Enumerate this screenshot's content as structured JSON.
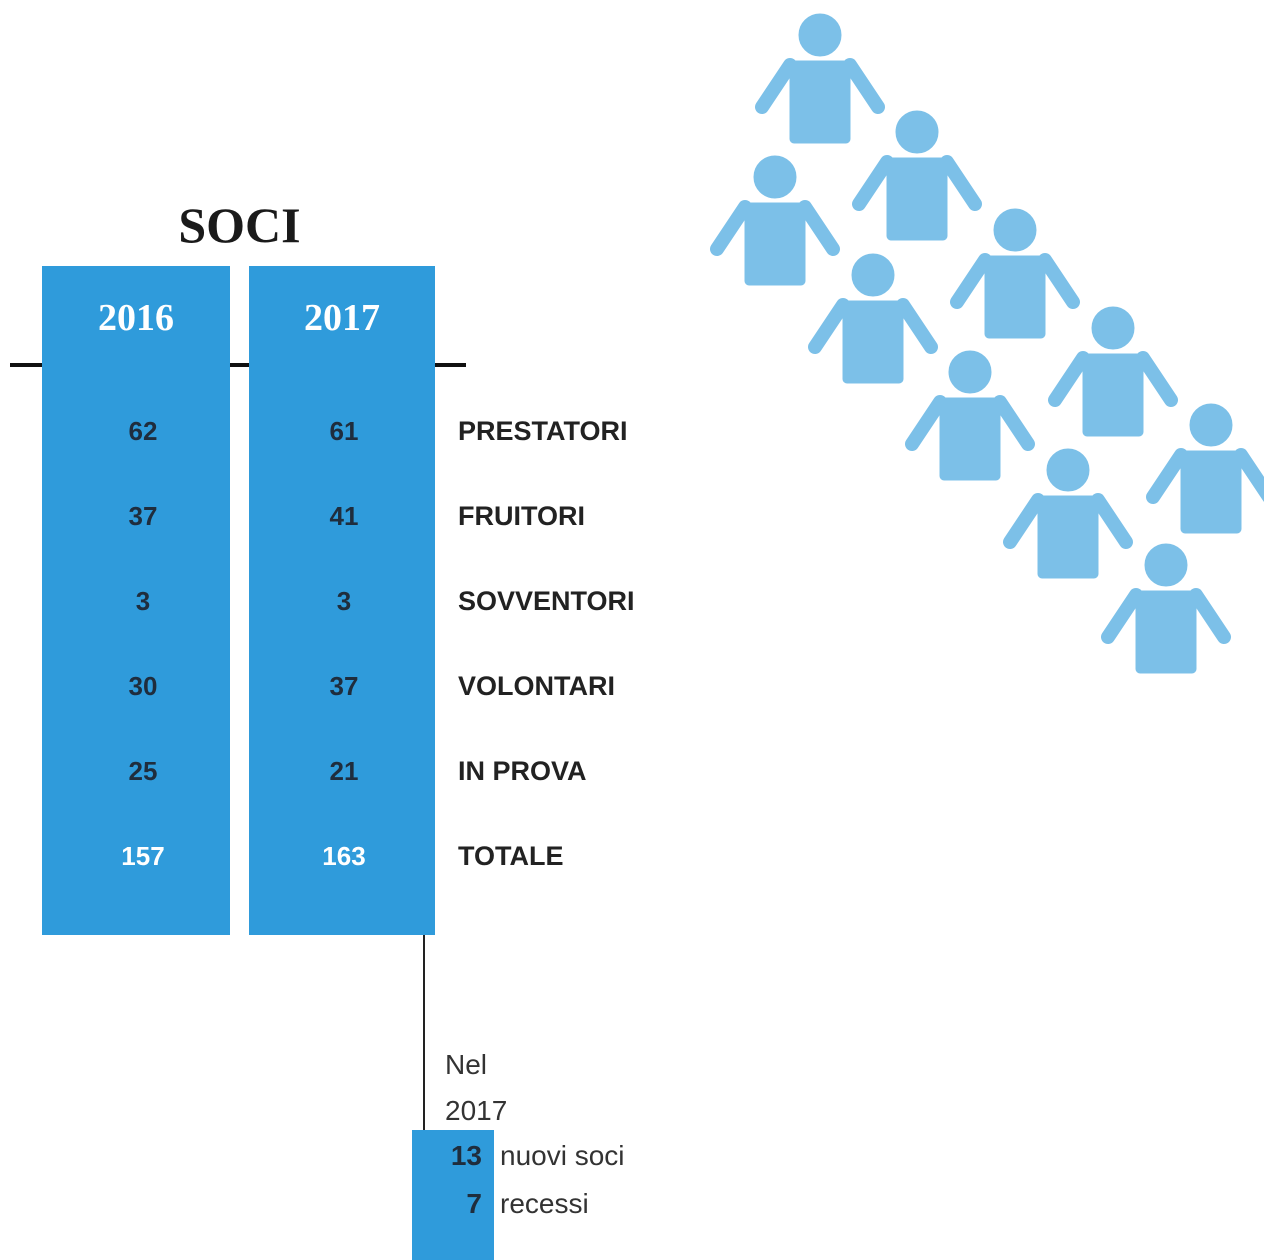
{
  "title": "SOCI",
  "table": {
    "columns": [
      "2016",
      "2017"
    ],
    "rows": [
      {
        "label": "PRESTATORI",
        "values": [
          62,
          61
        ]
      },
      {
        "label": "FRUITORI",
        "values": [
          37,
          41
        ]
      },
      {
        "label": "SOVVENTORI",
        "values": [
          3,
          3
        ]
      },
      {
        "label": "VOLONTARI",
        "values": [
          30,
          37
        ]
      },
      {
        "label": "IN PROVA",
        "values": [
          25,
          21
        ]
      },
      {
        "label": "TOTALE",
        "values": [
          157,
          163
        ]
      }
    ]
  },
  "note": {
    "intro": "Nel 2017",
    "items": [
      {
        "value": 13,
        "label": "nuovi soci"
      },
      {
        "value": 7,
        "label": "recessi"
      }
    ]
  }
}
